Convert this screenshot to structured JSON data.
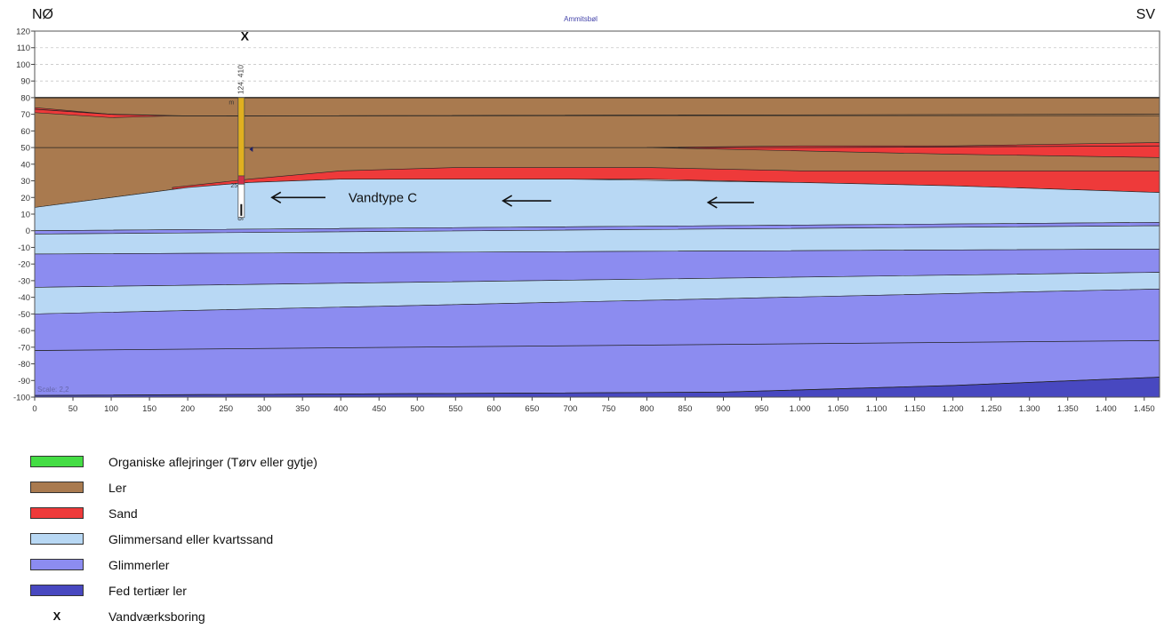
{
  "header": {
    "left": "NØ",
    "right": "SV",
    "title": "Ammitsbøl"
  },
  "scale_label": "Scale: 2,2",
  "y_ticks": [
    "120",
    "110",
    "100",
    "90",
    "80",
    "70",
    "60",
    "50",
    "40",
    "30",
    "20",
    "10",
    "0",
    "-10",
    "-20",
    "-30",
    "-40",
    "-50",
    "-60",
    "-70",
    "-80",
    "-90",
    "-100"
  ],
  "x_ticks": [
    "0",
    "50",
    "100",
    "150",
    "200",
    "250",
    "300",
    "350",
    "400",
    "450",
    "500",
    "550",
    "600",
    "650",
    "700",
    "750",
    "800",
    "850",
    "900",
    "950",
    "1.000",
    "1.050",
    "1.100",
    "1.150",
    "1.200",
    "1.250",
    "1.300",
    "1.350",
    "1.400",
    "1.450"
  ],
  "well": {
    "marker": "X",
    "label_top": "124. 410",
    "label_m": "m",
    "label_mid": "25",
    "label_bottom": "9",
    "x": 270,
    "top": 80,
    "bottom": 8,
    "intervals": [
      {
        "from": 80,
        "to": 33,
        "color": "#e0b020"
      },
      {
        "from": 33,
        "to": 28,
        "color": "#d0304a"
      },
      {
        "from": 28,
        "to": 8,
        "color": "#ffffff"
      }
    ]
  },
  "annotation": {
    "text": "Vandtype C"
  },
  "flow_arrows": [
    {
      "x_from": 380,
      "x_to": 310,
      "y": 20
    },
    {
      "x_from": 675,
      "x_to": 612,
      "y": 18
    },
    {
      "x_from": 940,
      "x_to": 880,
      "y": 17
    }
  ],
  "x_range": [
    0,
    1470
  ],
  "y_range": [
    -100,
    120
  ],
  "layers": [
    {
      "name": "Ler",
      "color": "#a97a4f",
      "top": [
        [
          0,
          80
        ],
        [
          1470,
          80
        ]
      ],
      "bottom": [
        [
          0,
          14
        ],
        [
          100,
          20
        ],
        [
          200,
          26
        ],
        [
          280,
          30
        ],
        [
          400,
          35
        ],
        [
          700,
          34
        ],
        [
          1000,
          32
        ],
        [
          1470,
          28
        ]
      ]
    },
    {
      "name": "Sand",
      "color": "#ee3a3a",
      "top": [
        [
          0,
          74
        ],
        [
          100,
          70
        ],
        [
          180,
          69
        ],
        [
          1470,
          69
        ]
      ],
      "bottom": [
        [
          0,
          71
        ],
        [
          100,
          68
        ],
        [
          180,
          69
        ],
        [
          1470,
          69
        ]
      ]
    },
    {
      "name": "Sand",
      "color": "#ee3a3a",
      "top": [
        [
          800,
          50
        ],
        [
          1000,
          51
        ],
        [
          1200,
          51
        ],
        [
          1470,
          53
        ]
      ],
      "bottom": [
        [
          800,
          50
        ],
        [
          1000,
          48
        ],
        [
          1200,
          46
        ],
        [
          1470,
          44
        ]
      ]
    },
    {
      "name": "Sand",
      "color": "#ee3a3a",
      "top": [
        [
          180,
          26
        ],
        [
          280,
          31
        ],
        [
          400,
          36
        ],
        [
          550,
          38
        ],
        [
          800,
          38
        ],
        [
          1000,
          36
        ],
        [
          1200,
          36
        ],
        [
          1470,
          36
        ]
      ],
      "bottom": [
        [
          180,
          25
        ],
        [
          280,
          29
        ],
        [
          400,
          31
        ],
        [
          550,
          31
        ],
        [
          800,
          31
        ],
        [
          1000,
          29
        ],
        [
          1200,
          27
        ],
        [
          1470,
          23
        ]
      ]
    },
    {
      "name": "Glimmersand eller kvartssand",
      "color": "#b8d8f4",
      "top": [
        [
          0,
          14
        ],
        [
          100,
          20
        ],
        [
          200,
          26
        ],
        [
          280,
          29
        ],
        [
          400,
          31
        ],
        [
          700,
          31
        ],
        [
          1000,
          29
        ],
        [
          1200,
          27
        ],
        [
          1470,
          23
        ]
      ],
      "bottom": [
        [
          0,
          0
        ],
        [
          1470,
          5
        ]
      ]
    },
    {
      "name": "Glimmerler",
      "color": "#8c8cf0",
      "top": [
        [
          0,
          0
        ],
        [
          1470,
          5
        ]
      ],
      "bottom": [
        [
          0,
          -2
        ],
        [
          1470,
          3
        ]
      ]
    },
    {
      "name": "Glimmersand eller kvartssand",
      "color": "#b8d8f4",
      "top": [
        [
          0,
          -2
        ],
        [
          1470,
          3
        ]
      ],
      "bottom": [
        [
          0,
          -14
        ],
        [
          1470,
          -11
        ]
      ]
    },
    {
      "name": "Glimmerler",
      "color": "#8c8cf0",
      "top": [
        [
          0,
          -14
        ],
        [
          1470,
          -11
        ]
      ],
      "bottom": [
        [
          0,
          -34
        ],
        [
          1470,
          -25
        ]
      ]
    },
    {
      "name": "Glimmersand eller kvartssand",
      "color": "#b8d8f4",
      "top": [
        [
          0,
          -34
        ],
        [
          1470,
          -25
        ]
      ],
      "bottom": [
        [
          0,
          -50
        ],
        [
          1470,
          -35
        ]
      ]
    },
    {
      "name": "Glimmerler",
      "color": "#8c8cf0",
      "top": [
        [
          0,
          -50
        ],
        [
          1470,
          -35
        ]
      ],
      "bottom": [
        [
          0,
          -100
        ],
        [
          1470,
          -100
        ]
      ]
    },
    {
      "name": "Fed tertiær ler",
      "color": "#4848c0",
      "top": [
        [
          0,
          -99
        ],
        [
          900,
          -97
        ],
        [
          1200,
          -93
        ],
        [
          1470,
          -88
        ]
      ],
      "bottom": [
        [
          0,
          -100
        ],
        [
          1470,
          -100
        ]
      ]
    }
  ],
  "contours": [
    [
      [
        0,
        73
      ],
      [
        100,
        70
      ],
      [
        200,
        69
      ],
      [
        1470,
        70
      ]
    ],
    [
      [
        0,
        50
      ],
      [
        600,
        50
      ],
      [
        1000,
        50
      ],
      [
        1470,
        51
      ]
    ],
    [
      [
        0,
        -72
      ],
      [
        1470,
        -66
      ]
    ],
    [
      [
        0,
        -99
      ],
      [
        900,
        -97
      ],
      [
        1200,
        -93
      ],
      [
        1470,
        -88
      ]
    ]
  ],
  "legend": [
    {
      "color": "#44dd44",
      "label": "Organiske aflejringer (Tørv eller gytje)"
    },
    {
      "color": "#a97a4f",
      "label": "Ler"
    },
    {
      "color": "#ee3a3a",
      "label": "Sand"
    },
    {
      "color": "#b8d8f4",
      "label": "Glimmersand eller kvartssand"
    },
    {
      "color": "#8c8cf0",
      "label": "Glimmerler"
    },
    {
      "color": "#4848c0",
      "label": "Fed tertiær ler"
    },
    {
      "marker": "X",
      "label": "Vandværksboring"
    }
  ]
}
